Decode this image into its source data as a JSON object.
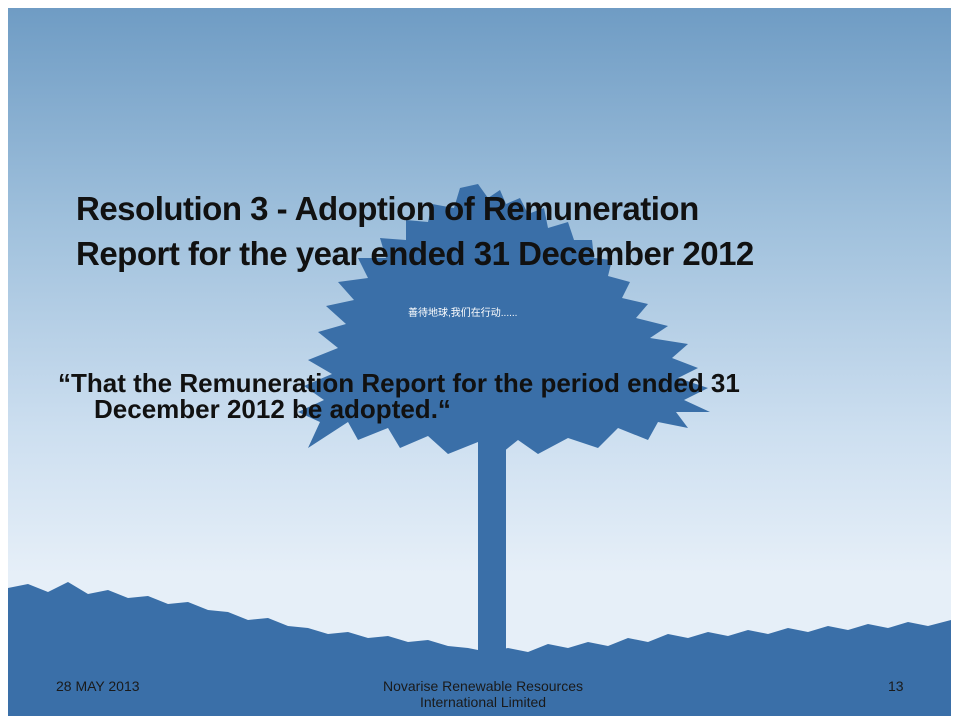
{
  "slide": {
    "title": [
      "Resolution 3 - Adoption of Remuneration",
      "Report for the year ended 31 December 2012"
    ],
    "tagline": "善待地球,我们在行动......",
    "body": [
      "“That the Remuneration Report for the period ended 31",
      "December 2012 be adopted.“"
    ],
    "footer": {
      "date": "28 MAY 2013",
      "company": [
        "Novarise Renewable  Resources",
        "International Limited"
      ],
      "page": "13"
    }
  }
}
